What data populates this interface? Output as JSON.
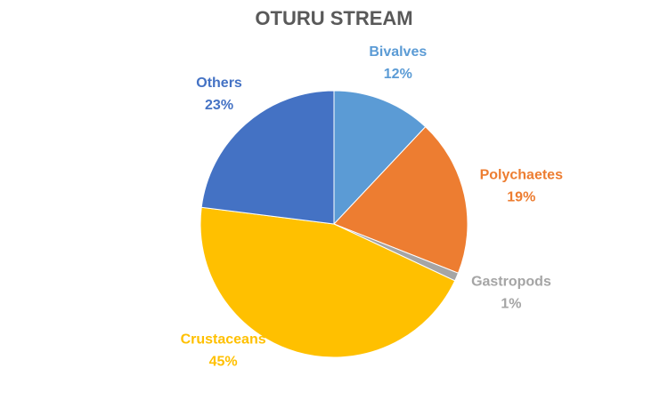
{
  "chart_data": {
    "type": "pie",
    "title": "OTURU STREAM",
    "categories": [
      "Bivalves",
      "Polychaetes",
      "Gastropods",
      "Crustaceans",
      "Others"
    ],
    "values": [
      12,
      19,
      1,
      45,
      23
    ],
    "value_labels": [
      "12%",
      "19%",
      "1%",
      "45%",
      "23%"
    ],
    "colors": [
      "#5b9bd5",
      "#ed7d31",
      "#a5a5a5",
      "#ffc000",
      "#4472c4"
    ]
  }
}
